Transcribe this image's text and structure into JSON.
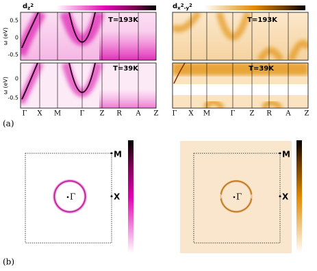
{
  "panel_a": {
    "label": "(a)",
    "y_axis_label": "ω (eV)",
    "top_yticks": [
      "0.5",
      "0",
      "-0.5"
    ],
    "bottom_yticks": [
      "0",
      "-0.5"
    ],
    "k_path": [
      "Γ",
      "X",
      "M",
      "Γ",
      "Z",
      "R",
      "A",
      "Z"
    ],
    "left": {
      "orbital": [
        "d",
        "z",
        "2"
      ],
      "top_temperature": "T=193K",
      "bottom_temperature": "T=39K"
    },
    "right": {
      "orbital": [
        "d",
        "x",
        "2",
        "-y",
        "2"
      ],
      "top_temperature": "T=193K",
      "bottom_temperature": "T=39K"
    }
  },
  "panel_b": {
    "label": "(b)",
    "left": {
      "point_m": "M",
      "point_x": "X",
      "point_gamma": "Γ"
    },
    "right": {
      "point_m": "M",
      "point_x": "X",
      "point_gamma": "Γ"
    }
  }
}
